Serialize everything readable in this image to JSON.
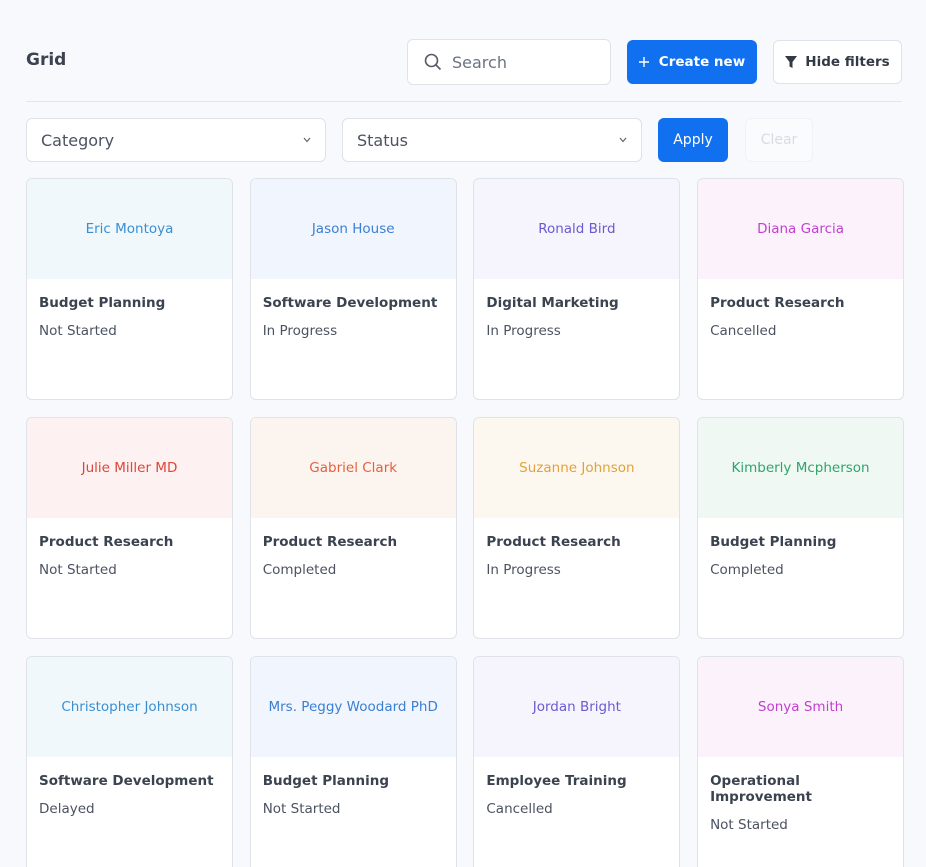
{
  "header": {
    "title": "Grid",
    "search_placeholder": "Search",
    "create_button": "Create new",
    "filters_button": "Hide filters"
  },
  "filters": {
    "category": "Category",
    "status": "Status",
    "apply": "Apply",
    "clear": "Clear"
  },
  "cards": [
    {
      "name": "Eric Montoya",
      "project": "Budget Planning",
      "status": "Not Started"
    },
    {
      "name": "Jason House",
      "project": "Software Development",
      "status": "In Progress"
    },
    {
      "name": "Ronald Bird",
      "project": "Digital Marketing",
      "status": "In Progress"
    },
    {
      "name": "Diana Garcia",
      "project": "Product Research",
      "status": "Cancelled"
    },
    {
      "name": "Julie Miller MD",
      "project": "Product Research",
      "status": "Not Started"
    },
    {
      "name": "Gabriel Clark",
      "project": "Product Research",
      "status": "Completed"
    },
    {
      "name": "Suzanne Johnson",
      "project": "Product Research",
      "status": "In Progress"
    },
    {
      "name": "Kimberly Mcpherson",
      "project": "Budget Planning",
      "status": "Completed"
    },
    {
      "name": "Christopher Johnson",
      "project": "Software Development",
      "status": "Delayed"
    },
    {
      "name": "Mrs. Peggy Woodard PhD",
      "project": "Budget Planning",
      "status": "Not Started"
    },
    {
      "name": "Jordan Bright",
      "project": "Employee Training",
      "status": "Cancelled"
    },
    {
      "name": "Sonya Smith",
      "project": "Operational Improvement",
      "status": "Not Started"
    }
  ]
}
